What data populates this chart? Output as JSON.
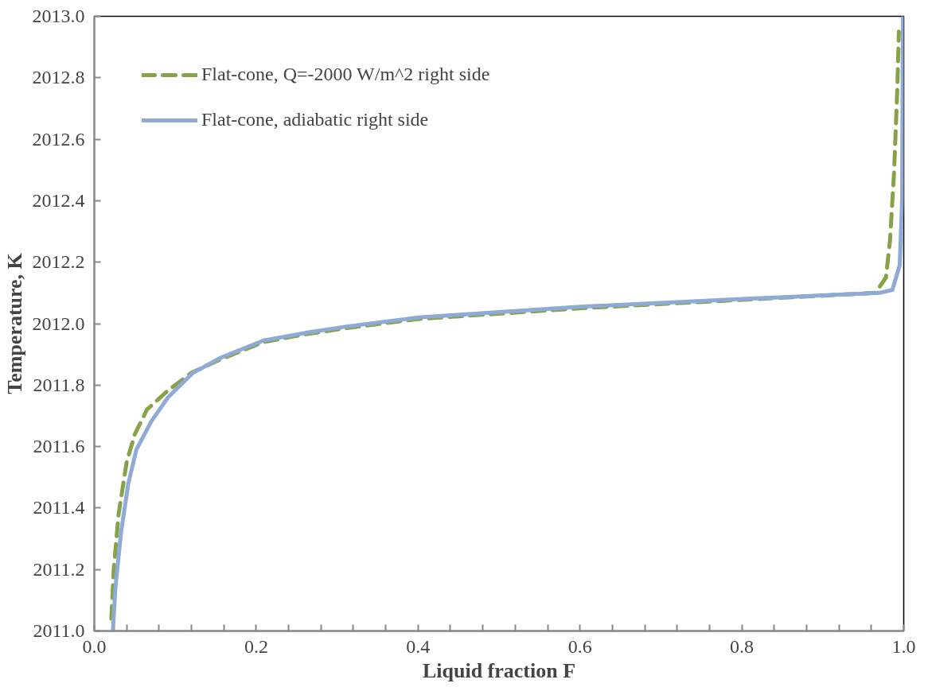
{
  "chart_data": {
    "type": "line",
    "xlabel": "Liquid fraction F",
    "ylabel": "Temperature, K",
    "xlim": [
      0,
      1
    ],
    "ylim": [
      2011,
      2013
    ],
    "xticks": [
      {
        "value": 0,
        "label": "0.0"
      },
      {
        "value": 0.04,
        "label": null
      },
      {
        "value": 0.08,
        "label": null
      },
      {
        "value": 0.12,
        "label": null
      },
      {
        "value": 0.16,
        "label": null
      },
      {
        "value": 0.2,
        "label": "0.2"
      },
      {
        "value": 0.24,
        "label": null
      },
      {
        "value": 0.28,
        "label": null
      },
      {
        "value": 0.32,
        "label": null
      },
      {
        "value": 0.36,
        "label": null
      },
      {
        "value": 0.4,
        "label": "0.4"
      },
      {
        "value": 0.44,
        "label": null
      },
      {
        "value": 0.48,
        "label": null
      },
      {
        "value": 0.52,
        "label": null
      },
      {
        "value": 0.56,
        "label": null
      },
      {
        "value": 0.6,
        "label": "0.6"
      },
      {
        "value": 0.64,
        "label": null
      },
      {
        "value": 0.68,
        "label": null
      },
      {
        "value": 0.72,
        "label": null
      },
      {
        "value": 0.76,
        "label": null
      },
      {
        "value": 0.8,
        "label": "0.8"
      },
      {
        "value": 0.84,
        "label": null
      },
      {
        "value": 0.88,
        "label": null
      },
      {
        "value": 0.92,
        "label": null
      },
      {
        "value": 0.96,
        "label": null
      },
      {
        "value": 1,
        "label": "1.0"
      }
    ],
    "yticks": [
      {
        "value": 2011,
        "label": "2011.0"
      },
      {
        "value": 2011.2,
        "label": "2011.2"
      },
      {
        "value": 2011.4,
        "label": "2011.4"
      },
      {
        "value": 2011.6,
        "label": "2011.6"
      },
      {
        "value": 2011.8,
        "label": "2011.8"
      },
      {
        "value": 2012,
        "label": "2012.0"
      },
      {
        "value": 2012.2,
        "label": "2012.2"
      },
      {
        "value": 2012.4,
        "label": "2012.4"
      },
      {
        "value": 2012.6,
        "label": "2012.6"
      },
      {
        "value": 2012.8,
        "label": "2012.8"
      },
      {
        "value": 2013,
        "label": "2013.0"
      }
    ],
    "grid": false,
    "legend": "top left",
    "marker": "none",
    "series": [
      {
        "name": "Flat-cone, Q=-2000 W/m^2 right side",
        "color": "#86a34a",
        "line_style": "dashed",
        "x": [
          0.021,
          0.024,
          0.03,
          0.04,
          0.05,
          0.065,
          0.09,
          0.12,
          0.157,
          0.209,
          0.26,
          0.31,
          0.4,
          0.6,
          0.965,
          0.978,
          0.983,
          0.988,
          0.992,
          0.994
        ],
        "values": [
          2011.04,
          2011.2,
          2011.38,
          2011.55,
          2011.64,
          2011.72,
          2011.78,
          2011.84,
          2011.885,
          2011.94,
          2011.965,
          2011.985,
          2012.015,
          2012.05,
          2012.1,
          2012.15,
          2012.27,
          2012.49,
          2012.76,
          2012.95
        ]
      },
      {
        "name": "Flat-cone, adiabatic right side",
        "color": "#8faad4",
        "line_style": "solid",
        "x": [
          0.023,
          0.026,
          0.033,
          0.042,
          0.052,
          0.07,
          0.091,
          0.122,
          0.157,
          0.209,
          0.261,
          0.31,
          0.4,
          0.6,
          0.8,
          0.97,
          0.986,
          0.995,
          0.998,
          0.999
        ],
        "values": [
          2011.0,
          2011.14,
          2011.32,
          2011.48,
          2011.59,
          2011.68,
          2011.76,
          2011.84,
          2011.89,
          2011.945,
          2011.97,
          2011.99,
          2012.02,
          2012.055,
          2012.08,
          2012.1,
          2012.11,
          2012.19,
          2012.4,
          2013.0
        ]
      }
    ]
  }
}
